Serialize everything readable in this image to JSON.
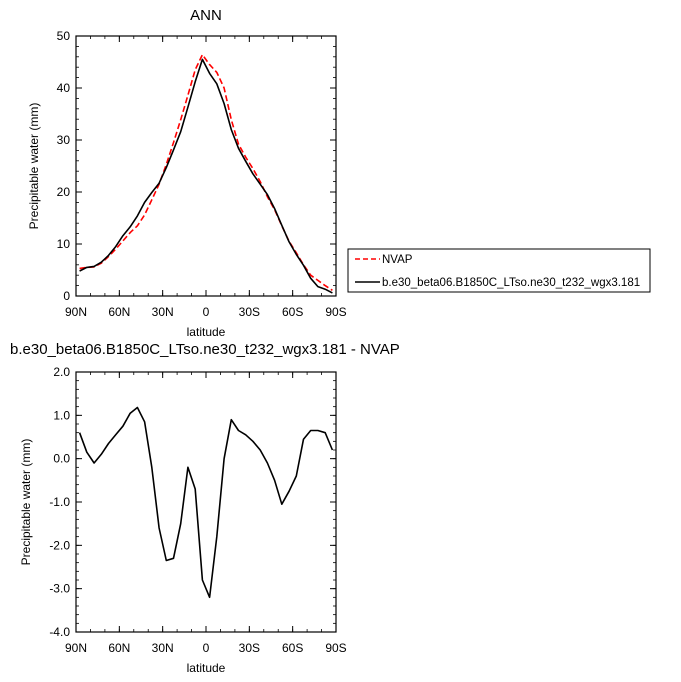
{
  "chart_data": [
    {
      "type": "line",
      "title": "ANN",
      "xlabel": "latitude",
      "ylabel": "Precipitable water (mm)",
      "xlim": [
        90,
        -90
      ],
      "ylim": [
        0,
        50
      ],
      "x_ticks": [
        {
          "value": 90,
          "label": "90N"
        },
        {
          "value": 60,
          "label": "60N"
        },
        {
          "value": 30,
          "label": "30N"
        },
        {
          "value": 0,
          "label": "0"
        },
        {
          "value": -30,
          "label": "30S"
        },
        {
          "value": -60,
          "label": "60S"
        },
        {
          "value": -90,
          "label": "90S"
        }
      ],
      "y_ticks": [
        {
          "value": 0,
          "label": "0"
        },
        {
          "value": 10,
          "label": "10"
        },
        {
          "value": 20,
          "label": "20"
        },
        {
          "value": 30,
          "label": "30"
        },
        {
          "value": 40,
          "label": "40"
        },
        {
          "value": 50,
          "label": "50"
        }
      ],
      "legend_position": "right",
      "series": [
        {
          "name": "NVAP",
          "color": "#ff0000",
          "dash": "dashed",
          "x": [
            87.5,
            82.5,
            77.5,
            72.5,
            67.5,
            62.5,
            57.5,
            52.5,
            47.5,
            42.5,
            37.5,
            32.5,
            27.5,
            22.5,
            17.5,
            12.5,
            7.5,
            2.5,
            -2.5,
            -7.5,
            -12.5,
            -17.5,
            -22.5,
            -27.5,
            -32.5,
            -37.5,
            -42.5,
            -47.5,
            -52.5,
            -57.5,
            -62.5,
            -67.5,
            -72.5,
            -77.5,
            -82.5,
            -87.5
          ],
          "y": [
            5.3,
            5.5,
            5.6,
            6.3,
            7.6,
            9.0,
            10.6,
            12.2,
            13.5,
            15.6,
            18.5,
            21.5,
            25.3,
            29.5,
            33.9,
            38.6,
            43.5,
            46.4,
            44.5,
            43.0,
            40.0,
            33.9,
            29.2,
            26.7,
            24.5,
            22.0,
            19.1,
            16.6,
            13.5,
            10.5,
            8.3,
            6.0,
            4.0,
            3.0,
            2.0,
            1.1
          ]
        },
        {
          "name": "b.e30_beta06.B1850C_LTso.ne30_t232_wgx3.181",
          "color": "#000000",
          "dash": "solid",
          "x": [
            87.5,
            82.5,
            77.5,
            72.5,
            67.5,
            62.5,
            57.5,
            52.5,
            47.5,
            42.5,
            37.5,
            32.5,
            27.5,
            22.5,
            17.5,
            12.5,
            7.5,
            2.5,
            -2.5,
            -7.5,
            -12.5,
            -17.5,
            -22.5,
            -27.5,
            -32.5,
            -37.5,
            -42.5,
            -47.5,
            -52.5,
            -57.5,
            -62.5,
            -67.5,
            -72.5,
            -77.5,
            -82.5,
            -87.5
          ],
          "y": [
            4.8,
            5.5,
            5.7,
            6.5,
            7.8,
            9.5,
            11.6,
            13.3,
            15.4,
            18.0,
            19.9,
            21.7,
            24.7,
            28.1,
            31.6,
            36.3,
            41.2,
            45.5,
            42.8,
            40.8,
            37.0,
            32.0,
            28.4,
            25.9,
            23.5,
            21.5,
            19.5,
            16.8,
            13.6,
            10.4,
            8.0,
            5.9,
            3.4,
            1.8,
            1.3,
            0.6
          ]
        }
      ]
    },
    {
      "type": "line",
      "title": "b.e30_beta06.B1850C_LTso.ne30_t232_wgx3.181 - NVAP",
      "xlabel": "latitude",
      "ylabel": "Precipitable water (mm)",
      "xlim": [
        90,
        -90
      ],
      "ylim": [
        -4.0,
        2.0
      ],
      "x_ticks": [
        {
          "value": 90,
          "label": "90N"
        },
        {
          "value": 60,
          "label": "60N"
        },
        {
          "value": 30,
          "label": "30N"
        },
        {
          "value": 0,
          "label": "0"
        },
        {
          "value": -30,
          "label": "30S"
        },
        {
          "value": -60,
          "label": "60S"
        },
        {
          "value": -90,
          "label": "90S"
        }
      ],
      "y_ticks": [
        {
          "value": 2.0,
          "label": "2.0"
        },
        {
          "value": 1.0,
          "label": "1.0"
        },
        {
          "value": 0.0,
          "label": "0.0"
        },
        {
          "value": -1.0,
          "label": "-1.0"
        },
        {
          "value": -2.0,
          "label": "-2.0"
        },
        {
          "value": -3.0,
          "label": "-3.0"
        },
        {
          "value": -4.0,
          "label": "-4.0"
        }
      ],
      "series": [
        {
          "color": "#000000",
          "dash": "solid",
          "x": [
            87.5,
            82.5,
            77.5,
            72.5,
            67.5,
            62.5,
            57.5,
            52.5,
            47.5,
            42.5,
            37.5,
            32.5,
            27.5,
            22.5,
            17.5,
            12.5,
            7.5,
            2.5,
            -2.5,
            -7.5,
            -12.5,
            -17.5,
            -22.5,
            -27.5,
            -32.5,
            -37.5,
            -42.5,
            -47.5,
            -52.5,
            -57.5,
            -62.5,
            -67.5,
            -72.5,
            -77.5,
            -82.5,
            -87.5
          ],
          "y": [
            0.6,
            0.15,
            -0.1,
            0.1,
            0.35,
            0.55,
            0.75,
            1.05,
            1.18,
            0.85,
            -0.2,
            -1.6,
            -2.35,
            -2.3,
            -1.5,
            -0.2,
            -0.7,
            -2.8,
            -3.2,
            -1.8,
            0.0,
            0.9,
            0.65,
            0.55,
            0.4,
            0.2,
            -0.1,
            -0.5,
            -1.05,
            -0.75,
            -0.4,
            0.45,
            0.65,
            0.65,
            0.6,
            0.2
          ]
        }
      ]
    }
  ]
}
